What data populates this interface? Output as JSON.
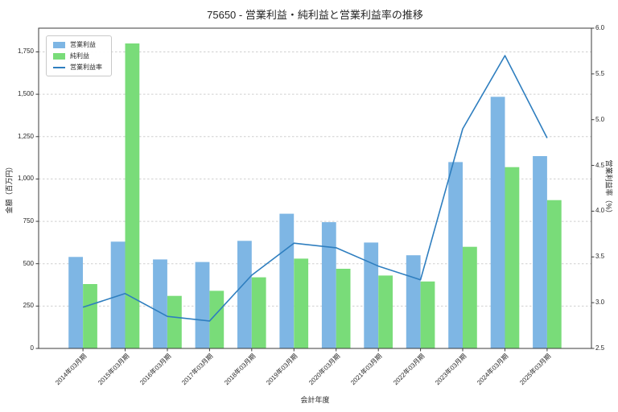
{
  "title": "75650 - 営業利益・純利益と営業利益率の推移",
  "axes": {
    "xlabel": "会計年度",
    "ylabel_left": "金額（百万円）",
    "ylabel_right": "営業利益率（%）"
  },
  "colors": {
    "bar_operating": "#7eb6e4",
    "bar_net": "#79dc79",
    "line_margin": "#2e7ebf",
    "grid": "#cfcfcf",
    "spine": "#3b3b3b",
    "text": "#262626"
  },
  "legend": {
    "items": [
      {
        "label": "営業利益",
        "type": "bar",
        "color": "#7eb6e4"
      },
      {
        "label": "純利益",
        "type": "bar",
        "color": "#79dc79"
      },
      {
        "label": "営業利益率",
        "type": "line",
        "color": "#2e7ebf"
      }
    ]
  },
  "chart_data": {
    "type": "combo-bar-line",
    "categories": [
      "2014年03月期",
      "2015年03月期",
      "2016年03月期",
      "2017年03月期",
      "2018年03月期",
      "2019年03月期",
      "2020年03月期",
      "2021年03月期",
      "2022年03月期",
      "2023年03月期",
      "2024年03月期",
      "2025年03月期"
    ],
    "series": [
      {
        "name": "営業利益",
        "type": "bar",
        "axis": "left",
        "color": "#7eb6e4",
        "values": [
          540,
          630,
          525,
          510,
          635,
          795,
          745,
          625,
          550,
          1100,
          1485,
          1135
        ]
      },
      {
        "name": "純利益",
        "type": "bar",
        "axis": "left",
        "color": "#79dc79",
        "values": [
          380,
          1800,
          310,
          340,
          420,
          530,
          470,
          430,
          395,
          600,
          1070,
          875
        ]
      },
      {
        "name": "営業利益率",
        "type": "line",
        "axis": "right",
        "color": "#2e7ebf",
        "values": [
          2.95,
          3.1,
          2.85,
          2.8,
          3.3,
          3.65,
          3.6,
          3.4,
          3.25,
          4.9,
          5.7,
          4.8
        ]
      }
    ],
    "left_axis": {
      "min": 0,
      "max": 1890,
      "ticks": [
        0,
        250,
        500,
        750,
        1000,
        1250,
        1500,
        1750
      ],
      "tick_labels": [
        "0",
        "250",
        "500",
        "750",
        "1,000",
        "1,250",
        "1,500",
        "1,750"
      ]
    },
    "right_axis": {
      "min": 2.5,
      "max": 6.0,
      "ticks": [
        2.5,
        3.0,
        3.5,
        4.0,
        4.5,
        5.0,
        5.5,
        6.0
      ],
      "tick_labels": [
        "2.5",
        "3.0",
        "3.5",
        "4.0",
        "4.5",
        "5.0",
        "5.5",
        "6.0"
      ]
    },
    "grid": true,
    "legend_position": "upper left"
  }
}
